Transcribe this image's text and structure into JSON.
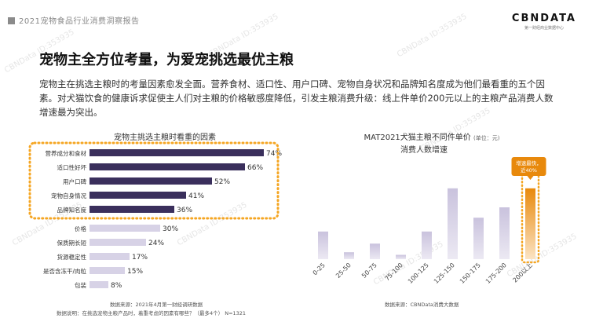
{
  "header": {
    "report_title": "2021宠物食品行业消费洞察报告",
    "logo_text": "CBNDATA",
    "logo_subtext": "第一财经商业数据中心"
  },
  "slide": {
    "title": "宠物主全方位考量，为爱宠挑选最优主粮",
    "summary": "宠物主在挑选主粮时的考量因素愈发全面。营养食材、适口性、用户口碑、宠物自身状况和品牌知名度成为他们最看重的五个因素。对犬猫饮食的健康诉求促使主人们对主粮的价格敏感度降低，引发主粮消费升级：线上件单价200元以上的主粮产品消费人数增速最为突出。"
  },
  "watermark_text": "CBNData ID:353935",
  "colors": {
    "highlight_bar": "#3a2f5c",
    "normal_bar": "#d7d2e6",
    "orange": "#f5a623",
    "orange_dark": "#e8890c"
  },
  "chart_data": [
    {
      "type": "bar",
      "orientation": "horizontal",
      "title": "宠物主挑选主粮时看重的因素",
      "categories": [
        "营养成分和食材",
        "适口性好坏",
        "用户口碑",
        "宠物自身情况",
        "品牌知名度",
        "价格",
        "保质期长短",
        "货源稳定性",
        "是否含冻干/肉粒",
        "包装"
      ],
      "values": [
        74,
        66,
        52,
        41,
        36,
        30,
        24,
        17,
        15,
        8
      ],
      "value_labels": [
        "74%",
        "66%",
        "52%",
        "41%",
        "36%",
        "30%",
        "24%",
        "17%",
        "15%",
        "8%"
      ],
      "highlighted_count": 5,
      "xlim": [
        0,
        80
      ],
      "source": "数据来源：2021年4月第一财经调研数据",
      "note": "数据说明：在挑选宠物主粮产品时，着重考虑的因素有哪些？（最多4个） N=1321"
    },
    {
      "type": "bar",
      "title": "MAT2021犬猫主粮不同件单价",
      "title_unit": "(单位：元)",
      "subtitle": "消费人数增速",
      "categories": [
        "0-25",
        "25-50",
        "50-75",
        "75-100",
        "100-125",
        "125-150",
        "150-175",
        "175-200",
        "200以上"
      ],
      "values": [
        0.32,
        0.08,
        0.18,
        0.05,
        0.32,
        0.82,
        0.48,
        0.6,
        0.82
      ],
      "highlighted_category": "200以上",
      "callout": "增速最快，近40%",
      "source": "数据来源：CBNData消费大数据"
    }
  ]
}
